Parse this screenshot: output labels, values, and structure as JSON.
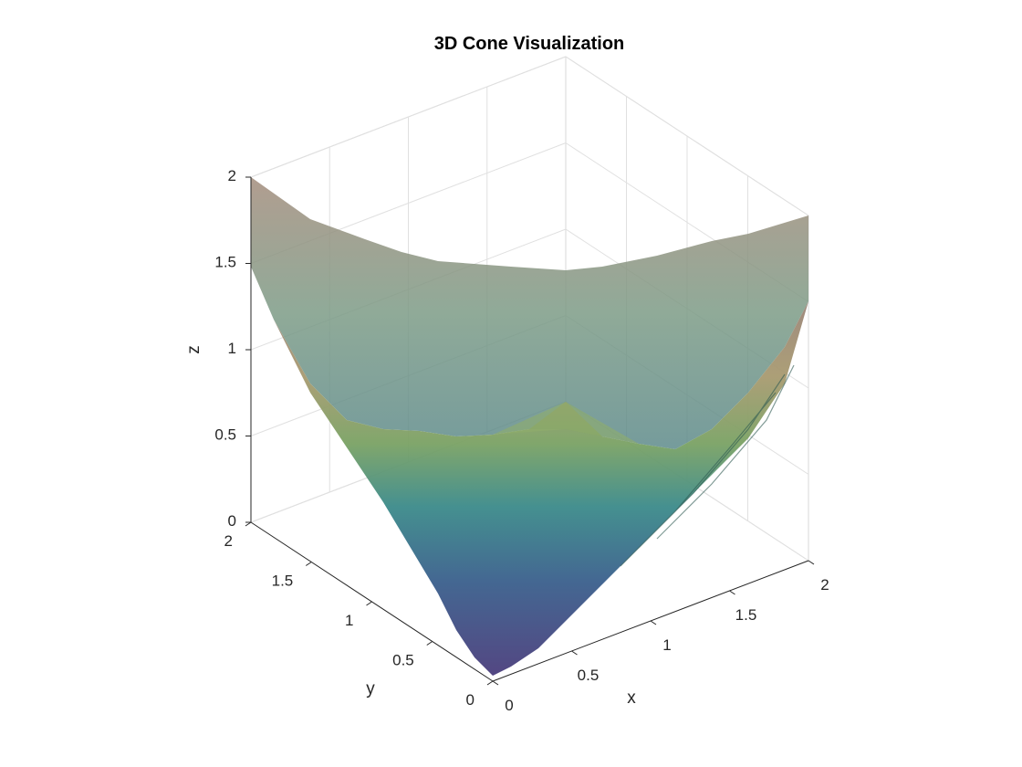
{
  "chart_data": {
    "type": "surface",
    "title": "3D Cone Visualization",
    "xlabel": "x",
    "ylabel": "y",
    "zlabel": "z",
    "xlim": [
      0,
      2
    ],
    "ylim": [
      0,
      2
    ],
    "zlim": [
      0,
      2
    ],
    "xticks": [
      "0",
      "0.5",
      "1",
      "1.5",
      "2"
    ],
    "yticks": [
      "0",
      "0.5",
      "1",
      "1.5",
      "2"
    ],
    "zticks": [
      "0",
      "0.5",
      "1",
      "1.5",
      "2"
    ],
    "surface": "z = sqrt(x^2 + y^2)",
    "grid": true,
    "colormap": [
      "#4a3d7c",
      "#3a5f8c",
      "#3b8a8a",
      "#7aa264",
      "#a89a70",
      "#9a8478"
    ]
  }
}
